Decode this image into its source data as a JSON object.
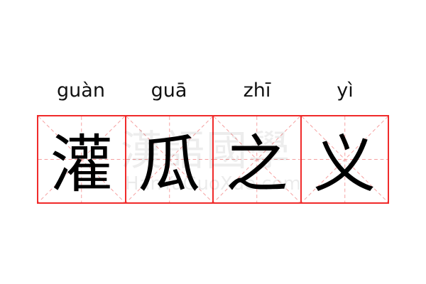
{
  "word": [
    {
      "pinyin": "guàn",
      "char": "灌"
    },
    {
      "pinyin": "guā",
      "char": "瓜"
    },
    {
      "pinyin": "zhī",
      "char": "之"
    },
    {
      "pinyin": "yì",
      "char": "义"
    }
  ],
  "watermark": {
    "chars": "漢語國學",
    "url": "HanYuGuoXue.com"
  },
  "colors": {
    "grid": "#f02a2a",
    "guide": "#f5a0a0"
  }
}
